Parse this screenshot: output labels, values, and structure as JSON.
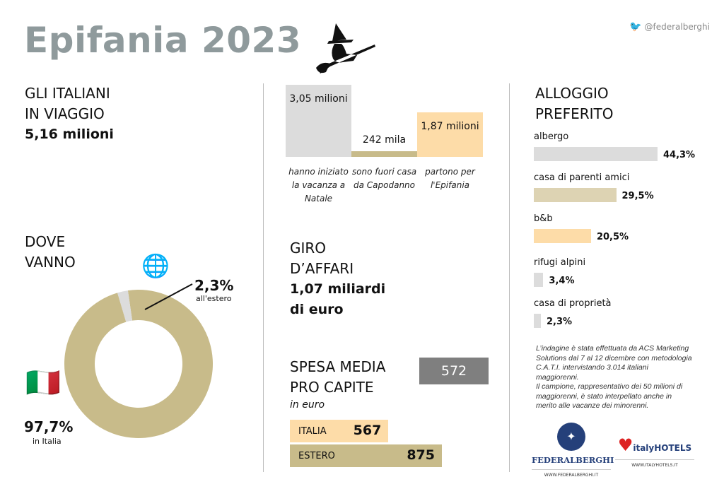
{
  "title": "Epifania 2023",
  "twitter": {
    "icon": "twitter-bird-icon",
    "handle": "@federalberghi"
  },
  "travel": {
    "line1": "GLI ITALIANI",
    "line2": "IN VIAGGIO",
    "value": "5,16 milioni"
  },
  "where": {
    "line1": "DOVE",
    "line2": "VANNO",
    "abroad_pct": "2,3%",
    "abroad_label": "all'estero",
    "italy_pct": "97,7%",
    "italy_label": "in Italia"
  },
  "business": {
    "line1": "GIRO",
    "line2": "D’AFFARI",
    "value1": "1,07 miliardi",
    "value2": "di euro"
  },
  "spending": {
    "line1": "SPESA MEDIA",
    "line2": "PRO CAPITE",
    "unit": "in euro",
    "value": "572"
  },
  "accommodation": {
    "line1": "ALLOGGIO",
    "line2": "PREFERITO"
  },
  "note": [
    "L’indagine è stata effettuata da ACS Marketing",
    "Solutions dal 7 al 12 dicembre con metodologia",
    "C.A.T.I. intervistando 3.014 italiani",
    "maggiorenni.",
    "Il campione, rappresentativo dei 50 milioni di",
    "maggiorenni, è stato interpellato anche in",
    "merito alle vacanze dei minorenni."
  ],
  "logos": {
    "federalberghi": "FEDERALBERGHI",
    "federalberghi_url": "WWW.FEDERALBERGHI.IT",
    "italyhotels": "italyHOTELS",
    "italyhotels_url": "WWW.ITALYHOTELS.IT"
  },
  "colors": {
    "gray": "#dcdcdc",
    "tan": "#c8bb8a",
    "peach": "#fddca8",
    "dark": "#7f7f7f",
    "title": "#8f9a9c"
  },
  "chart_data": [
    {
      "type": "pie",
      "name": "where",
      "categories": [
        "in Italia",
        "all'estero"
      ],
      "values": [
        97.7,
        2.3
      ],
      "labels": [
        "97,7%",
        "2,3%"
      ],
      "colors": [
        "#c8bb8a",
        "#dcdcdc"
      ]
    },
    {
      "type": "bar",
      "name": "holiday",
      "categories": [
        "hanno iniziato la vacanza a Natale",
        "sono fuori casa da Capodanno",
        "partono per l'Epifania"
      ],
      "values": [
        3.05,
        0.242,
        1.87
      ],
      "unit": "milioni",
      "labels": [
        "3,05 milioni",
        "242 mila",
        "1,87 milioni"
      ],
      "colors": [
        "#dcdcdc",
        "#c8bb8a",
        "#fddca8"
      ]
    },
    {
      "type": "bar",
      "name": "accommodation",
      "orientation": "horizontal",
      "categories": [
        "albergo",
        "casa di parenti amici",
        "b&b",
        "rifugi alpini",
        "casa di proprietà"
      ],
      "values": [
        44.3,
        29.5,
        20.5,
        3.4,
        2.3
      ],
      "labels": [
        "44,3%",
        "29,5%",
        "20,5%",
        "3,4%",
        "2,3%"
      ],
      "colors": [
        "#dcdcdc",
        "#ddd3b3",
        "#fddca8",
        "#dcdcdc",
        "#dcdcdc"
      ]
    },
    {
      "type": "bar",
      "name": "spending",
      "orientation": "horizontal",
      "categories": [
        "ITALIA",
        "ESTERO"
      ],
      "values": [
        567,
        875
      ],
      "labels": [
        "567",
        "875"
      ],
      "colors": [
        "#fddca8",
        "#c8bb8a"
      ]
    }
  ]
}
